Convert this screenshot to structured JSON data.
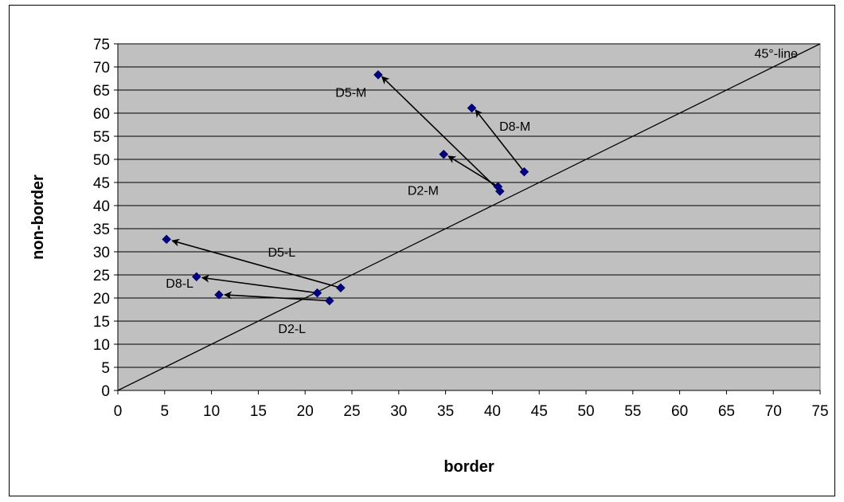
{
  "chart_data": {
    "type": "scatter",
    "xlabel": "border",
    "ylabel": "non-border",
    "xlim": [
      0,
      75
    ],
    "ylim": [
      0,
      75
    ],
    "x_ticks": [
      0,
      5,
      10,
      15,
      20,
      25,
      30,
      35,
      40,
      45,
      50,
      55,
      60,
      65,
      70,
      75
    ],
    "y_ticks": [
      0,
      5,
      10,
      15,
      20,
      25,
      30,
      35,
      40,
      45,
      50,
      55,
      60,
      65,
      70,
      75
    ],
    "grid": true,
    "legend": "none",
    "points": [
      {
        "x": 27.8,
        "y": 68.3
      },
      {
        "x": 37.8,
        "y": 61.1
      },
      {
        "x": 43.4,
        "y": 47.3
      },
      {
        "x": 34.8,
        "y": 51.1
      },
      {
        "x": 40.6,
        "y": 44.1
      },
      {
        "x": 40.8,
        "y": 43.1
      },
      {
        "x": 5.2,
        "y": 32.7
      },
      {
        "x": 8.4,
        "y": 24.6
      },
      {
        "x": 10.8,
        "y": 20.7
      },
      {
        "x": 21.3,
        "y": 21.1
      },
      {
        "x": 23.8,
        "y": 22.2
      },
      {
        "x": 22.6,
        "y": 19.4
      }
    ],
    "arrows": [
      {
        "label": "D5-M",
        "from": [
          40.8,
          43.1
        ],
        "to": [
          28.2,
          67.9
        ]
      },
      {
        "label": "D8-M",
        "from": [
          43.4,
          47.3
        ],
        "to": [
          38.2,
          60.7
        ]
      },
      {
        "label": "D2-M",
        "from": [
          40.6,
          44.1
        ],
        "to": [
          35.3,
          50.7
        ]
      },
      {
        "label": "D5-L",
        "from": [
          23.8,
          22.2
        ],
        "to": [
          5.8,
          32.4
        ]
      },
      {
        "label": "D8-L",
        "from": [
          21.3,
          21.1
        ],
        "to": [
          9.0,
          24.4
        ]
      },
      {
        "label": "D2-L",
        "from": [
          22.6,
          19.4
        ],
        "to": [
          11.4,
          20.7
        ]
      }
    ],
    "annotations": [
      {
        "text": "D5-M",
        "x": 24.9,
        "y": 63.5
      },
      {
        "text": "D8-M",
        "x": 42.4,
        "y": 56.2
      },
      {
        "text": "D2-M",
        "x": 32.6,
        "y": 42.3
      },
      {
        "text": "D5-L",
        "x": 17.5,
        "y": 29.0
      },
      {
        "text": "D8-L",
        "x": 6.6,
        "y": 22.2
      },
      {
        "text": "D2-L",
        "x": 18.6,
        "y": 12.4
      },
      {
        "text": "45°-line",
        "x": 70.3,
        "y": 72.0
      }
    ],
    "reference_line": {
      "label": "45°-line",
      "from": [
        0,
        0
      ],
      "to": [
        75,
        75
      ]
    },
    "colors": {
      "plot_bg": "#c0c0c0",
      "marker": "#000080",
      "grid": "#000000",
      "line": "#000000"
    }
  }
}
